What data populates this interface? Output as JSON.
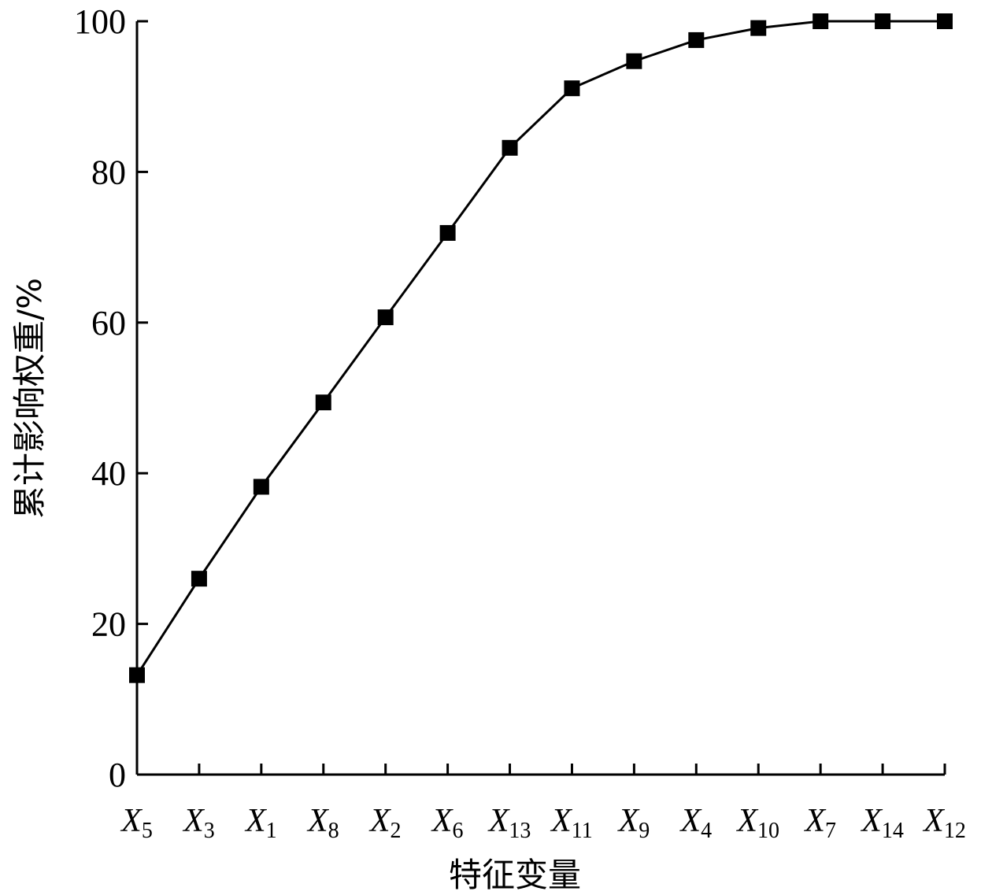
{
  "chart_data": {
    "type": "line",
    "title": "",
    "xlabel": "特征变量",
    "ylabel": "累计影响权重/%",
    "ylim": [
      0,
      100
    ],
    "yticks": [
      "0",
      "20",
      "40",
      "60",
      "80",
      "100"
    ],
    "grid": false,
    "legend": "none",
    "categories": [
      {
        "base": "X",
        "sub": "5"
      },
      {
        "base": "X",
        "sub": "3"
      },
      {
        "base": "X",
        "sub": "1"
      },
      {
        "base": "X",
        "sub": "8"
      },
      {
        "base": "X",
        "sub": "2"
      },
      {
        "base": "X",
        "sub": "6"
      },
      {
        "base": "X",
        "sub": "13"
      },
      {
        "base": "X",
        "sub": "11"
      },
      {
        "base": "X",
        "sub": "9"
      },
      {
        "base": "X",
        "sub": "4"
      },
      {
        "base": "X",
        "sub": "10"
      },
      {
        "base": "X",
        "sub": "7"
      },
      {
        "base": "X",
        "sub": "14"
      },
      {
        "base": "X",
        "sub": "12"
      }
    ],
    "series": [
      {
        "marker": "square",
        "color": "#000000",
        "values": [
          13.2,
          26.0,
          38.2,
          49.4,
          60.7,
          71.9,
          83.2,
          91.1,
          94.7,
          97.5,
          99.1,
          100,
          100,
          100
        ]
      }
    ]
  }
}
